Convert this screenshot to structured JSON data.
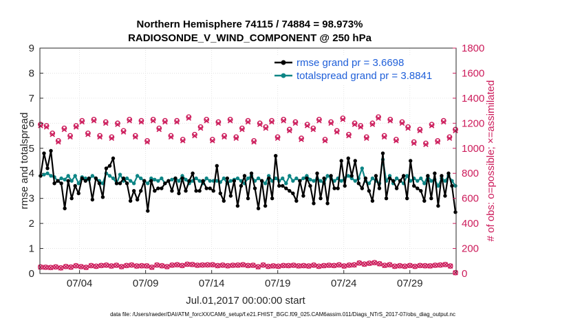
{
  "chart_data": {
    "type": "line",
    "title_line1": "Northern Hemisphere 74115 / 74884 = 98.973%",
    "title_line2": "RADIOSONDE_V_WIND_COMPONENT @ 250 hPa",
    "xlabel": "Jul.01,2017 00:00:00 start",
    "ylabel": "rmse and totalspread",
    "ylabel_right": "# of obs: o=possible; ×=assimilated",
    "xlim": [
      1,
      32.5
    ],
    "ylim": [
      0,
      9
    ],
    "ylim_right": [
      0,
      1800
    ],
    "x_ticks": [
      4,
      9,
      14,
      19,
      24,
      29
    ],
    "x_tick_labels": [
      "07/04",
      "07/09",
      "07/14",
      "07/19",
      "07/24",
      "07/29"
    ],
    "y_ticks": [
      0,
      1,
      2,
      3,
      4,
      5,
      6,
      7,
      8,
      9
    ],
    "y_right_ticks": [
      0,
      200,
      400,
      600,
      800,
      1000,
      1200,
      1400,
      1600,
      1800
    ],
    "legend": {
      "position": "top-right",
      "entries": [
        "rmse grand pr = 3.6698",
        "totalspread grand pr = 3.8841"
      ]
    },
    "series": [
      {
        "name": "rmse",
        "color": "#000000",
        "axis": "left",
        "values": [
          3.9,
          4.8,
          4.2,
          4.9,
          3.6,
          3.7,
          3.6,
          2.6,
          3.7,
          3.0,
          3.5,
          3.2,
          3.8,
          3.7,
          3.8,
          2.95,
          3.8,
          3.6,
          3.05,
          4.2,
          4.3,
          4.6,
          3.6,
          3.6,
          3.8,
          3.6,
          2.9,
          3.3,
          2.95,
          3.3,
          3.7,
          2.5,
          3.7,
          3.3,
          3.4,
          3.4,
          3.6,
          3.7,
          3.3,
          3.8,
          3.2,
          3.8,
          3.3,
          3.7,
          4.0,
          3.3,
          3.3,
          3.7,
          3.4,
          3.4,
          3.3,
          4.3,
          3.2,
          2.9,
          3.8,
          3.1,
          3.7,
          2.7,
          3.5,
          3.9,
          3.0,
          4.0,
          3.4,
          2.6,
          3.7,
          2.7,
          3.8,
          3.0,
          4.7,
          3.5,
          3.5,
          3.4,
          3.3,
          3.2,
          2.9,
          3.7,
          3.1,
          3.8,
          3.5,
          2.8,
          4.0,
          3.0,
          3.8,
          2.8,
          3.9,
          3.4,
          3.4,
          4.5,
          3.5,
          4.6,
          3.9,
          4.5,
          3.6,
          3.4,
          3.8,
          3.3,
          2.9,
          3.9,
          3.4,
          4.8,
          3.0,
          3.8,
          3.7,
          3.4,
          3.7,
          3.9,
          3.0,
          4.5,
          3.5,
          3.4,
          3.3,
          2.9,
          3.9,
          3.0,
          4.0,
          2.7,
          3.9,
          3.1,
          4.0,
          3.5,
          2.45
        ]
      },
      {
        "name": "totalspread",
        "color": "#0d8585",
        "axis": "left",
        "values": [
          3.9,
          3.95,
          4.0,
          3.9,
          3.85,
          3.7,
          3.8,
          3.75,
          3.9,
          3.7,
          3.9,
          3.6,
          3.85,
          3.8,
          3.75,
          3.9,
          3.8,
          3.7,
          3.6,
          4.0,
          3.9,
          3.8,
          3.6,
          3.95,
          3.7,
          3.8,
          3.7,
          3.6,
          3.9,
          3.8,
          3.7,
          3.6,
          3.8,
          3.75,
          3.7,
          3.8,
          3.6,
          3.7,
          3.75,
          3.8,
          3.7,
          3.9,
          3.75,
          3.6,
          3.7,
          3.8,
          3.7,
          3.6,
          3.8,
          3.7,
          3.7,
          3.7,
          3.65,
          3.8,
          3.6,
          3.7,
          3.75,
          3.8,
          3.7,
          3.6,
          3.8,
          3.9,
          3.7,
          3.8,
          3.7,
          3.6,
          3.9,
          3.7,
          3.8,
          3.7,
          3.8,
          3.6,
          3.9,
          3.7,
          3.8,
          3.7,
          3.8,
          3.9,
          3.75,
          3.7,
          3.8,
          3.7,
          3.6,
          3.9,
          3.8,
          3.7,
          3.8,
          3.7,
          3.8,
          3.9,
          3.8,
          3.7,
          3.8,
          4.2,
          3.7,
          3.6,
          3.8,
          3.7,
          3.6,
          4.55,
          3.7,
          3.9,
          3.6,
          3.8,
          3.7,
          3.6,
          3.9,
          3.7,
          3.8,
          3.7,
          3.8,
          3.6,
          3.9,
          3.7,
          3.75,
          3.5,
          3.8,
          3.7,
          3.9,
          3.7,
          3.5
        ]
      },
      {
        "name": "obs possible",
        "color": "#cc1a5a",
        "axis": "right",
        "marker": "o",
        "values": [
          1190,
          1180,
          1120,
          1060,
          1160,
          1100,
          1180,
          1220,
          1120,
          1230,
          1100,
          1210,
          1090,
          1200,
          1140,
          1230,
          1100,
          1220,
          1060,
          1230,
          1160,
          1220,
          1100,
          1220,
          1070,
          1250,
          1110,
          1170,
          1230,
          1070,
          1210,
          1100,
          1230,
          1090,
          1160,
          1220,
          1060,
          1200,
          1170,
          1220,
          1090,
          1230,
          1150,
          1210,
          1080,
          1190,
          1160,
          1230,
          1070,
          1210,
          1140,
          1240,
          1110,
          1200,
          1180,
          1090,
          1200,
          1250,
          1100,
          1230,
          1070,
          1210,
          1170,
          1050,
          1150,
          1040,
          1190,
          1060,
          1220,
          1090,
          1150
        ]
      },
      {
        "name": "obs assimilated",
        "color": "#cc1a5a",
        "axis": "right",
        "marker": "x",
        "values": [
          1180,
          1170,
          1110,
          1050,
          1150,
          1090,
          1170,
          1210,
          1110,
          1220,
          1090,
          1200,
          1080,
          1190,
          1130,
          1220,
          1090,
          1210,
          1050,
          1220,
          1150,
          1210,
          1090,
          1210,
          1060,
          1240,
          1100,
          1160,
          1220,
          1060,
          1200,
          1090,
          1220,
          1080,
          1150,
          1210,
          1050,
          1190,
          1160,
          1210,
          1080,
          1220,
          1140,
          1200,
          1070,
          1180,
          1150,
          1220,
          1060,
          1200,
          1130,
          1230,
          1100,
          1190,
          1170,
          1080,
          1190,
          1240,
          1090,
          1220,
          1060,
          1200,
          1160,
          1040,
          1140,
          1030,
          1180,
          1050,
          1210,
          1080,
          1140
        ]
      },
      {
        "name": "obs possible low",
        "color": "#cc1a5a",
        "axis": "right",
        "marker": "o",
        "values": [
          52,
          50,
          48,
          53,
          45,
          56,
          51,
          62,
          55,
          49,
          63,
          58,
          64,
          67,
          60,
          66,
          55,
          64,
          68,
          60,
          62,
          61,
          50,
          68,
          62,
          55,
          67,
          70,
          64,
          74,
          72,
          66,
          68,
          69,
          70,
          63,
          67,
          62,
          66,
          67,
          70,
          64,
          66,
          54,
          68,
          57,
          61,
          58,
          64,
          63,
          66,
          61,
          63,
          60,
          67,
          58,
          63,
          66,
          64,
          69,
          60,
          67,
          69,
          84,
          75,
          82,
          87,
          78,
          65,
          70,
          58,
          62,
          58,
          64,
          57,
          64,
          62,
          61,
          66,
          68,
          72,
          60,
          7
        ]
      },
      {
        "name": "obs assimilated low",
        "color": "#cc1a5a",
        "axis": "right",
        "marker": "x",
        "values": [
          51,
          49,
          47,
          52,
          44,
          55,
          50,
          61,
          54,
          48,
          62,
          57,
          63,
          66,
          59,
          65,
          54,
          63,
          67,
          59,
          61,
          60,
          49,
          67,
          61,
          54,
          66,
          69,
          63,
          73,
          71,
          65,
          67,
          68,
          69,
          62,
          66,
          61,
          65,
          66,
          69,
          63,
          65,
          53,
          67,
          56,
          60,
          57,
          63,
          62,
          65,
          60,
          62,
          59,
          66,
          57,
          62,
          65,
          63,
          68,
          59,
          66,
          68,
          83,
          74,
          81,
          86,
          77,
          64,
          69,
          57,
          61,
          57,
          63,
          56,
          63,
          61,
          60,
          65,
          67,
          71,
          59,
          6
        ]
      }
    ],
    "footnote": "data file: /Users/raeder/DAI/ATM_forcXX/CAM6_setup/f.e21.FHIST_BGC.f09_025.CAM6assim.011/Diags_NTrS_2017-07/obs_diag_output.nc"
  }
}
